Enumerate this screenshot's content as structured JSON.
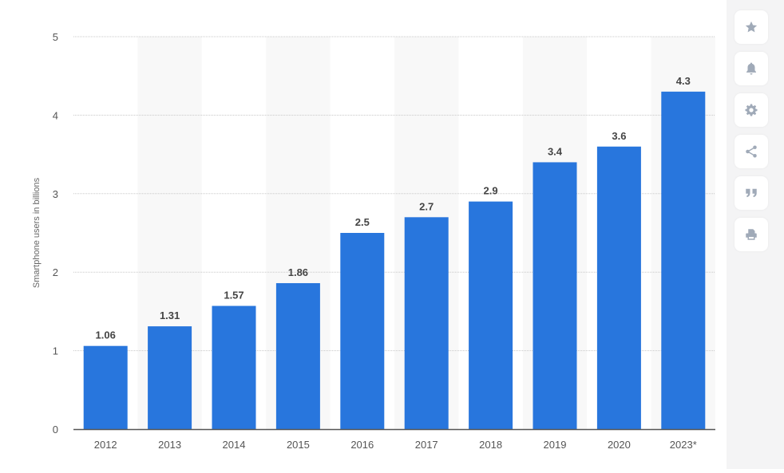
{
  "chart_data": {
    "type": "bar",
    "title": "",
    "xlabel": "",
    "ylabel": "Smartphone users in billions",
    "categories": [
      "2012",
      "2013",
      "2014",
      "2015",
      "2016",
      "2017",
      "2018",
      "2019",
      "2020",
      "2023*"
    ],
    "values": [
      1.06,
      1.31,
      1.57,
      1.86,
      2.5,
      2.7,
      2.9,
      3.4,
      3.6,
      4.3
    ],
    "data_labels": [
      "1.06",
      "1.31",
      "1.57",
      "1.86",
      "2.5",
      "2.7",
      "2.9",
      "3.4",
      "3.6",
      "4.3"
    ],
    "ylim": [
      0,
      5
    ],
    "yticks": [
      0,
      1,
      2,
      3,
      4,
      5
    ],
    "grid": true,
    "legend": null,
    "bar_color": "#2876dd",
    "band_color": "#f8f8f8"
  },
  "sidebar": {
    "buttons": [
      {
        "name": "favorite",
        "icon": "star-icon"
      },
      {
        "name": "notify",
        "icon": "bell-icon"
      },
      {
        "name": "settings",
        "icon": "gear-icon"
      },
      {
        "name": "share",
        "icon": "share-icon"
      },
      {
        "name": "cite",
        "icon": "quote-icon"
      },
      {
        "name": "print",
        "icon": "print-icon"
      }
    ],
    "icon_color": "#a0aab8"
  }
}
